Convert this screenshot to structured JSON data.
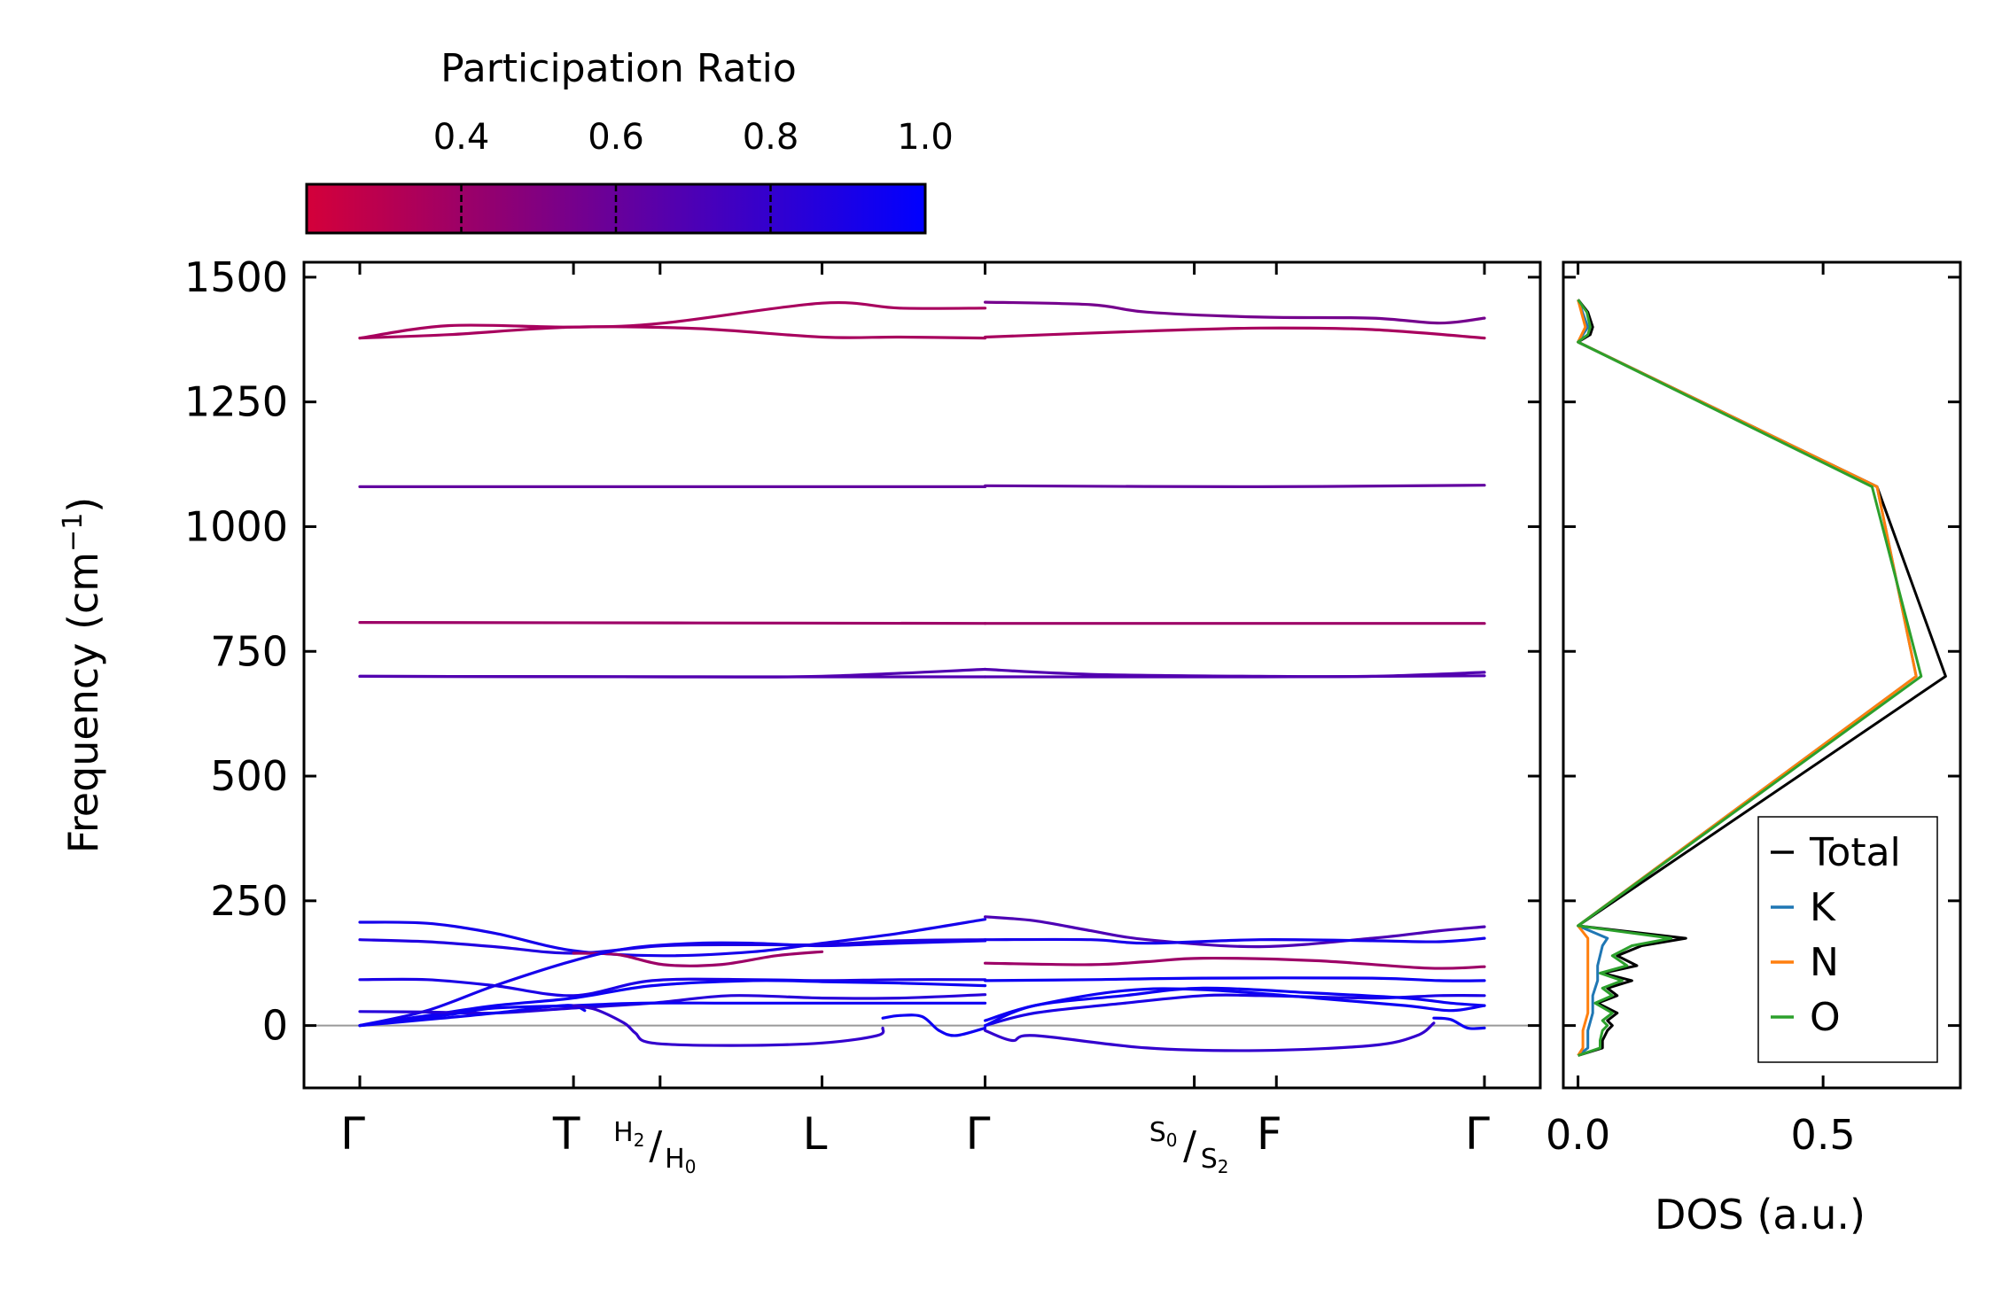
{
  "chart_data": [
    {
      "type": "line",
      "title": "",
      "ylabel": "Frequency (cm",
      "ylabel_sup": "−1",
      "ylabel_end": ")",
      "ylim": [
        -125,
        1530
      ],
      "yticks": [
        0,
        250,
        500,
        750,
        1000,
        1250,
        1500
      ],
      "ytick_labels": [
        "0",
        "250",
        "500",
        "750",
        "1000",
        "1250",
        "1500"
      ],
      "xlim": [
        0,
        1
      ],
      "high_symmetry_points": [
        {
          "x": 0.0,
          "label": "Γ",
          "type": "plain"
        },
        {
          "x": 0.19,
          "label": "T",
          "type": "plain"
        },
        {
          "x": 0.267,
          "label": "",
          "type": "frac",
          "num": "H",
          "num_sub": "2",
          "den": "H",
          "den_sub": "0"
        },
        {
          "x": 0.411,
          "label": "L",
          "type": "plain"
        },
        {
          "x": 0.556,
          "label": "Γ",
          "type": "plain"
        },
        {
          "x": 0.742,
          "label": "",
          "type": "frac",
          "num": "S",
          "num_sub": "0",
          "den": "S",
          "den_sub": "2"
        },
        {
          "x": 0.815,
          "label": "F",
          "type": "plain"
        },
        {
          "x": 1.0,
          "label": "Γ",
          "type": "plain"
        }
      ],
      "zero_line": 0,
      "colorbar": {
        "label": "Participation Ratio",
        "range": [
          0.2,
          1.0
        ],
        "ticks": [
          0.4,
          0.6,
          0.8,
          1.0
        ],
        "tick_labels": [
          "0.4",
          "0.6",
          "0.8",
          "1.0"
        ],
        "color_low": "#d4003a",
        "color_high": "#0000ff"
      },
      "bands": [
        {
          "seg": 1,
          "pr": 0.36,
          "x": [
            0,
            0.08,
            0.19,
            0.27,
            0.411,
            0.48,
            0.556
          ],
          "y": [
            1378,
            1403,
            1400,
            1408,
            1448,
            1438,
            1438
          ]
        },
        {
          "seg": 1,
          "pr": 0.36,
          "x": [
            0,
            0.08,
            0.19,
            0.3,
            0.411,
            0.48,
            0.556
          ],
          "y": [
            1378,
            1385,
            1400,
            1397,
            1380,
            1380,
            1378
          ]
        },
        {
          "seg": 1,
          "pr": 0.62,
          "x": [
            0,
            0.3,
            0.556
          ],
          "y": [
            1080,
            1080,
            1080
          ]
        },
        {
          "seg": 1,
          "pr": 0.4,
          "x": [
            0,
            0.3,
            0.556
          ],
          "y": [
            808,
            807,
            806
          ]
        },
        {
          "seg": 1,
          "pr": 0.68,
          "x": [
            0,
            0.3,
            0.411,
            0.556
          ],
          "y": [
            700,
            699,
            700,
            714
          ]
        },
        {
          "seg": 1,
          "pr": 0.68,
          "x": [
            0,
            0.3,
            0.411,
            0.556
          ],
          "y": [
            700,
            699,
            699,
            699
          ]
        },
        {
          "seg": 1,
          "pr": 0.92,
          "x": [
            0,
            0.06,
            0.12,
            0.19,
            0.27,
            0.35,
            0.411,
            0.48,
            0.556
          ],
          "y": [
            207,
            205,
            185,
            150,
            140,
            148,
            165,
            185,
            213
          ]
        },
        {
          "seg": 1,
          "pr": 0.88,
          "x": [
            0,
            0.06,
            0.12,
            0.19,
            0.27,
            0.35,
            0.411,
            0.48,
            0.556
          ],
          "y": [
            172,
            168,
            158,
            145,
            160,
            162,
            162,
            170,
            172
          ]
        },
        {
          "seg": 1,
          "pr": 0.4,
          "x": [
            0.19,
            0.23,
            0.27,
            0.32,
            0.37,
            0.411
          ],
          "y": [
            145,
            142,
            122,
            122,
            140,
            148
          ]
        },
        {
          "seg": 1,
          "pr": 0.92,
          "x": [
            0,
            0.06,
            0.12,
            0.19,
            0.24,
            0.3,
            0.35,
            0.411,
            0.48,
            0.556
          ],
          "y": [
            0,
            30,
            80,
            130,
            155,
            165,
            165,
            160,
            165,
            170
          ]
        },
        {
          "seg": 1,
          "pr": 0.9,
          "x": [
            0,
            0.06,
            0.12,
            0.19,
            0.26,
            0.35,
            0.411,
            0.48,
            0.556
          ],
          "y": [
            92,
            92,
            80,
            60,
            90,
            92,
            90,
            92,
            92
          ]
        },
        {
          "seg": 1,
          "pr": 0.95,
          "x": [
            0,
            0.06,
            0.12,
            0.19,
            0.26,
            0.35,
            0.411,
            0.48,
            0.556
          ],
          "y": [
            0,
            20,
            40,
            55,
            80,
            90,
            88,
            85,
            80
          ]
        },
        {
          "seg": 1,
          "pr": 0.85,
          "x": [
            0,
            0.06,
            0.12,
            0.19,
            0.26,
            0.33,
            0.411,
            0.48,
            0.556
          ],
          "y": [
            28,
            27,
            25,
            35,
            45,
            60,
            55,
            55,
            62
          ]
        },
        {
          "seg": 1,
          "pr": 0.95,
          "x": [
            0,
            0.04,
            0.08,
            0.12,
            0.19,
            0.25,
            0.33,
            0.411,
            0.5,
            0.556
          ],
          "y": [
            0,
            10,
            22,
            35,
            40,
            45,
            45,
            45,
            45,
            45
          ]
        },
        {
          "seg": 1,
          "pr": 0.95,
          "x": [
            0,
            0.06,
            0.12,
            0.17,
            0.19,
            0.2
          ],
          "y": [
            0,
            12,
            25,
            38,
            40,
            30
          ]
        },
        {
          "seg": 1,
          "pr": 0.8,
          "x": [
            0.19,
            0.21,
            0.235,
            0.245,
            0.26,
            0.33,
            0.411,
            0.46,
            0.465
          ],
          "y": [
            40,
            32,
            5,
            -15,
            -35,
            -40,
            -35,
            -20,
            -5
          ]
        },
        {
          "seg": 1,
          "pr": 0.95,
          "x": [
            0.465,
            0.48,
            0.5,
            0.515,
            0.53,
            0.556
          ],
          "y": [
            15,
            20,
            18,
            -10,
            -20,
            -5
          ]
        },
        {
          "seg": 2,
          "pr": 0.55,
          "x": [
            0.556,
            0.65,
            0.7,
            0.8,
            0.9,
            0.96,
            1.0
          ],
          "y": [
            1450,
            1445,
            1430,
            1420,
            1418,
            1408,
            1418
          ]
        },
        {
          "seg": 2,
          "pr": 0.36,
          "x": [
            0.556,
            0.7,
            0.8,
            0.9,
            1.0
          ],
          "y": [
            1380,
            1392,
            1398,
            1395,
            1378
          ]
        },
        {
          "seg": 2,
          "pr": 0.62,
          "x": [
            0.556,
            0.8,
            1.0
          ],
          "y": [
            1082,
            1080,
            1083
          ]
        },
        {
          "seg": 2,
          "pr": 0.4,
          "x": [
            0.556,
            0.8,
            1.0
          ],
          "y": [
            806,
            806,
            806
          ]
        },
        {
          "seg": 2,
          "pr": 0.68,
          "x": [
            0.556,
            0.65,
            0.8,
            0.9,
            1.0
          ],
          "y": [
            714,
            704,
            700,
            700,
            708
          ]
        },
        {
          "seg": 2,
          "pr": 0.68,
          "x": [
            0.556,
            0.8,
            1.0
          ],
          "y": [
            699,
            699,
            701
          ]
        },
        {
          "seg": 2,
          "pr": 0.7,
          "x": [
            0.556,
            0.6,
            0.65,
            0.7,
            0.8,
            0.9,
            0.96,
            1.0
          ],
          "y": [
            218,
            210,
            190,
            172,
            158,
            175,
            190,
            198
          ]
        },
        {
          "seg": 2,
          "pr": 0.92,
          "x": [
            0.556,
            0.65,
            0.7,
            0.8,
            0.9,
            0.96,
            1.0
          ],
          "y": [
            172,
            172,
            165,
            172,
            170,
            168,
            175
          ]
        },
        {
          "seg": 2,
          "pr": 0.4,
          "x": [
            0.556,
            0.65,
            0.7,
            0.75,
            0.85,
            0.95,
            1.0
          ],
          "y": [
            125,
            122,
            128,
            135,
            130,
            115,
            118
          ]
        },
        {
          "seg": 2,
          "pr": 0.95,
          "x": [
            0.556,
            0.65,
            0.75,
            0.9,
            0.96,
            1.0
          ],
          "y": [
            90,
            92,
            95,
            95,
            90,
            90
          ]
        },
        {
          "seg": 2,
          "pr": 0.9,
          "x": [
            0.556,
            0.6,
            0.68,
            0.75,
            0.8,
            0.9,
            0.96,
            1.0
          ],
          "y": [
            0,
            25,
            45,
            60,
            60,
            55,
            60,
            60
          ]
        },
        {
          "seg": 2,
          "pr": 0.95,
          "x": [
            0.556,
            0.6,
            0.68,
            0.75,
            0.85,
            0.93,
            0.97,
            1.0
          ],
          "y": [
            10,
            40,
            70,
            72,
            55,
            40,
            30,
            40
          ]
        },
        {
          "seg": 2,
          "pr": 0.95,
          "x": [
            0.556,
            0.6,
            0.68,
            0.75,
            0.85,
            0.93,
            0.97,
            1.0
          ],
          "y": [
            0,
            40,
            60,
            75,
            65,
            55,
            45,
            40
          ]
        },
        {
          "seg": 2,
          "pr": 0.8,
          "x": [
            0.556,
            0.58,
            0.6,
            0.7,
            0.8,
            0.9,
            0.94,
            0.955
          ],
          "y": [
            -10,
            -30,
            -20,
            -45,
            -50,
            -40,
            -20,
            5
          ]
        },
        {
          "seg": 2,
          "pr": 0.95,
          "x": [
            0.955,
            0.97,
            0.985,
            1.0
          ],
          "y": [
            15,
            12,
            -5,
            -5
          ]
        }
      ]
    },
    {
      "type": "line",
      "title": "",
      "xlabel": "DOS (a.u.)",
      "xlim": [
        -0.03,
        0.78
      ],
      "xticks": [
        0.0,
        0.5
      ],
      "xtick_labels": [
        "0.0",
        "0.5"
      ],
      "ylim": [
        -125,
        1530
      ],
      "legend_position": "bottom-right",
      "series": [
        {
          "name": "Total",
          "color": "#000000",
          "y": [
            -60,
            -45,
            -30,
            -10,
            0,
            10,
            25,
            45,
            60,
            75,
            90,
            105,
            120,
            140,
            160,
            175,
            200,
            700,
            1080,
            1370,
            1385,
            1400,
            1430,
            1455
          ],
          "x": [
            0.0,
            0.05,
            0.05,
            0.06,
            0.07,
            0.06,
            0.08,
            0.04,
            0.08,
            0.06,
            0.11,
            0.05,
            0.12,
            0.08,
            0.13,
            0.22,
            0.0,
            0.75,
            0.61,
            0.0,
            0.025,
            0.03,
            0.02,
            0.0
          ]
        },
        {
          "name": "K",
          "color": "#1f77b4",
          "y": [
            -60,
            -45,
            -10,
            25,
            60,
            90,
            120,
            160,
            175,
            200,
            700,
            1080,
            1370,
            1400,
            1455
          ],
          "x": [
            0.0,
            0.02,
            0.02,
            0.03,
            0.03,
            0.04,
            0.04,
            0.05,
            0.06,
            0.0,
            0.69,
            0.61,
            0.0,
            0.02,
            0.0
          ]
        },
        {
          "name": "N",
          "color": "#ff7f0e",
          "y": [
            -60,
            -45,
            -10,
            25,
            60,
            90,
            120,
            160,
            175,
            200,
            700,
            1080,
            1370,
            1400,
            1455
          ],
          "x": [
            0.0,
            0.01,
            0.01,
            0.02,
            0.02,
            0.02,
            0.02,
            0.02,
            0.02,
            0.0,
            0.69,
            0.61,
            0.0,
            0.015,
            0.0
          ]
        },
        {
          "name": "O",
          "color": "#2ca02c",
          "y": [
            -60,
            -45,
            -30,
            -10,
            0,
            10,
            25,
            45,
            60,
            75,
            90,
            105,
            120,
            140,
            160,
            175,
            200,
            700,
            1080,
            1370,
            1385,
            1400,
            1430,
            1455
          ],
          "x": [
            0.0,
            0.045,
            0.045,
            0.05,
            0.06,
            0.05,
            0.07,
            0.035,
            0.07,
            0.05,
            0.09,
            0.045,
            0.1,
            0.07,
            0.11,
            0.19,
            0.0,
            0.7,
            0.6,
            0.0,
            0.02,
            0.025,
            0.018,
            0.0
          ]
        }
      ]
    }
  ]
}
